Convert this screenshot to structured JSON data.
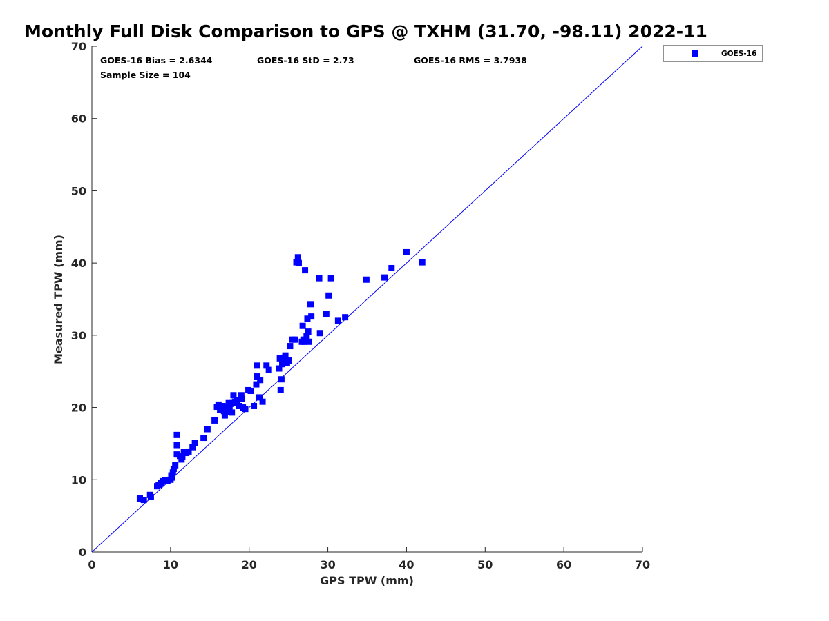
{
  "chart_data": {
    "type": "scatter",
    "title": "Monthly Full Disk Comparison to GPS @ TXHM (31.70, -98.11) 2022-11",
    "xlabel": "GPS TPW (mm)",
    "ylabel": "Measured TPW (mm)",
    "xlim": [
      0,
      70
    ],
    "ylim": [
      0,
      70
    ],
    "x_ticks": [
      "0",
      "10",
      "20",
      "30",
      "40",
      "50",
      "60",
      "70"
    ],
    "y_ticks": [
      "0",
      "10",
      "20",
      "30",
      "40",
      "50",
      "60",
      "70"
    ],
    "grid": false,
    "legend_position": "outside-top-right",
    "reference_line": "1:1",
    "stats": {
      "bias": "GOES-16 Bias = 2.6344",
      "std": "GOES-16 StD = 2.73",
      "rms": "GOES-16 RMS = 3.7938",
      "sample": "Sample Size = 104"
    },
    "series": [
      {
        "name": "GOES-16",
        "color": "#0000ff",
        "marker": "square",
        "x": [
          6.1,
          6.6,
          7.4,
          7.5,
          8.3,
          8.5,
          8.8,
          9.0,
          9.3,
          9.6,
          10.0,
          10.1,
          10.2,
          10.3,
          10.4,
          10.6,
          10.8,
          10.8,
          10.8,
          11.2,
          11.4,
          11.5,
          11.7,
          12.0,
          12.3,
          12.8,
          13.1,
          14.2,
          14.7,
          15.6,
          15.9,
          16.1,
          16.3,
          16.5,
          16.6,
          16.8,
          16.9,
          17.0,
          17.1,
          17.3,
          17.4,
          17.5,
          17.6,
          17.8,
          17.9,
          18.0,
          18.1,
          18.2,
          18.4,
          18.7,
          19.0,
          19.1,
          19.2,
          19.5,
          19.9,
          20.2,
          20.6,
          20.9,
          21.0,
          21.0,
          21.3,
          21.4,
          21.7,
          22.2,
          22.5,
          23.8,
          23.9,
          24.0,
          24.1,
          24.2,
          24.3,
          24.5,
          24.6,
          24.8,
          25.0,
          25.2,
          25.5,
          25.8,
          26.0,
          26.2,
          26.3,
          26.7,
          26.8,
          26.9,
          27.0,
          27.1,
          27.3,
          27.4,
          27.5,
          27.6,
          27.8,
          27.9,
          28.9,
          29.0,
          29.8,
          30.1,
          30.4,
          31.3,
          32.2,
          34.9,
          37.2,
          38.1,
          40.0,
          42.0
        ],
        "y": [
          7.4,
          7.2,
          7.9,
          7.6,
          9.1,
          9.3,
          9.6,
          9.8,
          9.9,
          9.8,
          10.0,
          10.6,
          10.3,
          11.0,
          11.5,
          12.0,
          16.2,
          14.8,
          13.5,
          13.3,
          12.8,
          13.2,
          13.8,
          13.7,
          13.9,
          14.5,
          15.1,
          15.8,
          17.0,
          18.2,
          20.1,
          20.4,
          19.7,
          19.9,
          20.2,
          19.5,
          18.9,
          20.0,
          19.4,
          19.9,
          20.7,
          19.8,
          20.5,
          19.3,
          20.7,
          21.7,
          20.6,
          20.8,
          21.0,
          20.2,
          21.7,
          21.2,
          20.0,
          19.8,
          22.4,
          22.3,
          20.2,
          23.2,
          25.8,
          24.3,
          21.4,
          23.8,
          20.8,
          25.8,
          25.2,
          25.4,
          26.8,
          22.4,
          23.9,
          26.0,
          26.4,
          26.9,
          27.2,
          26.2,
          26.5,
          28.5,
          29.4,
          29.4,
          40.1,
          40.8,
          40.0,
          29.1,
          31.3,
          29.4,
          29.1,
          39.0,
          29.9,
          32.3,
          30.5,
          29.1,
          34.3,
          32.6,
          37.9,
          30.3,
          32.9,
          35.5,
          37.9,
          32.0,
          32.5,
          37.7,
          38.0,
          39.3,
          41.5,
          40.1
        ]
      }
    ]
  }
}
